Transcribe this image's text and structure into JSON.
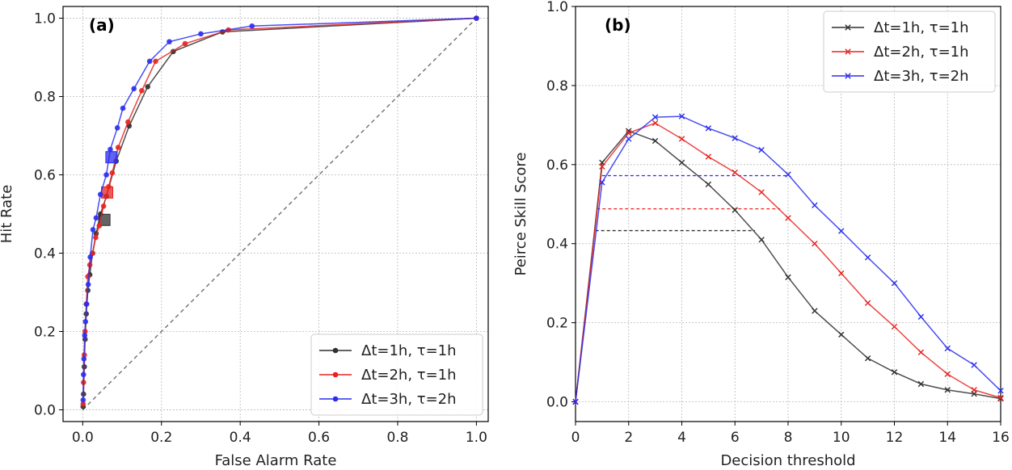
{
  "chart_data": [
    {
      "type": "line",
      "panel_label": "(a)",
      "xlabel": "False Alarm Rate",
      "ylabel": "Hit Rate",
      "xlim": [
        -0.05,
        1.03
      ],
      "ylim": [
        -0.03,
        1.03
      ],
      "xticks": [
        0.0,
        0.2,
        0.4,
        0.6,
        0.8,
        1.0
      ],
      "xtick_labels": [
        "0.0",
        "0.2",
        "0.4",
        "0.6",
        "0.8",
        "1.0"
      ],
      "yticks": [
        0.0,
        0.2,
        0.4,
        0.6,
        0.8,
        1.0
      ],
      "ytick_labels": [
        "0.0",
        "0.2",
        "0.4",
        "0.6",
        "0.8",
        "1.0"
      ],
      "grid": true,
      "legend_position": "bottom-right",
      "diagonal": [
        [
          0.0,
          0.0
        ],
        [
          1.0,
          1.0
        ]
      ],
      "series": [
        {
          "name": "Δt=1h, τ=1h",
          "color": "#303030",
          "marker": "circle",
          "x": [
            0.001,
            0.002,
            0.004,
            0.006,
            0.009,
            0.013,
            0.018,
            0.025,
            0.034,
            0.045,
            0.06,
            0.085,
            0.118,
            0.165,
            0.23,
            0.355,
            1.0
          ],
          "y": [
            0.008,
            0.04,
            0.11,
            0.18,
            0.245,
            0.305,
            0.345,
            0.4,
            0.45,
            0.5,
            0.545,
            0.635,
            0.725,
            0.825,
            0.915,
            0.965,
            1.0
          ],
          "optimum": [
            0.055,
            0.485
          ]
        },
        {
          "name": "Δt=2h, τ=1h",
          "color": "#e8231f",
          "marker": "circle",
          "x": [
            0.001,
            0.002,
            0.004,
            0.006,
            0.009,
            0.013,
            0.018,
            0.025,
            0.033,
            0.042,
            0.053,
            0.066,
            0.075,
            0.09,
            0.115,
            0.15,
            0.185,
            0.26,
            0.37,
            1.0
          ],
          "y": [
            0.015,
            0.07,
            0.14,
            0.2,
            0.27,
            0.34,
            0.37,
            0.4,
            0.44,
            0.47,
            0.52,
            0.57,
            0.605,
            0.67,
            0.735,
            0.815,
            0.89,
            0.935,
            0.97,
            1.0
          ],
          "optimum": [
            0.062,
            0.555
          ]
        },
        {
          "name": "Δt=3h, τ=2h",
          "color": "#2a2ef0",
          "marker": "circle",
          "x": [
            0.001,
            0.002,
            0.003,
            0.005,
            0.007,
            0.01,
            0.014,
            0.019,
            0.026,
            0.034,
            0.045,
            0.06,
            0.07,
            0.088,
            0.102,
            0.13,
            0.17,
            0.22,
            0.3,
            0.43,
            1.0
          ],
          "y": [
            0.025,
            0.09,
            0.13,
            0.19,
            0.225,
            0.27,
            0.32,
            0.39,
            0.46,
            0.49,
            0.55,
            0.6,
            0.665,
            0.72,
            0.77,
            0.82,
            0.89,
            0.94,
            0.96,
            0.98,
            1.0
          ],
          "optimum": [
            0.073,
            0.645
          ]
        }
      ]
    },
    {
      "type": "line",
      "panel_label": "(b)",
      "xlabel": "Decision threshold",
      "ylabel": "Peirce Skill Score",
      "xlim": [
        0,
        16
      ],
      "ylim": [
        -0.05,
        1.0
      ],
      "xticks": [
        0,
        2,
        4,
        6,
        8,
        10,
        12,
        14,
        16
      ],
      "xtick_labels": [
        "0",
        "2",
        "4",
        "6",
        "8",
        "10",
        "12",
        "14",
        "16"
      ],
      "yticks": [
        0.0,
        0.2,
        0.4,
        0.6,
        0.8,
        1.0
      ],
      "ytick_labels": [
        "0.0",
        "0.2",
        "0.4",
        "0.6",
        "0.8",
        "1.0"
      ],
      "grid": true,
      "legend_position": "top-right",
      "series": [
        {
          "name": "Δt=1h, τ=1h",
          "color": "#303030",
          "marker": "x",
          "x": [
            0,
            1,
            2,
            3,
            4,
            5,
            6,
            7,
            8,
            9,
            10,
            11,
            12,
            13,
            14,
            15,
            16
          ],
          "y": [
            0.0,
            0.605,
            0.685,
            0.66,
            0.605,
            0.55,
            0.485,
            0.41,
            0.315,
            0.23,
            0.17,
            0.11,
            0.075,
            0.045,
            0.03,
            0.02,
            0.008
          ],
          "hline": {
            "y": 0.433,
            "x0": 0.75,
            "x1": 6.75
          }
        },
        {
          "name": "Δt=2h, τ=1h",
          "color": "#e8231f",
          "marker": "x",
          "x": [
            0,
            1,
            2,
            3,
            4,
            5,
            6,
            7,
            8,
            9,
            10,
            11,
            12,
            13,
            14,
            15,
            16
          ],
          "y": [
            0.0,
            0.595,
            0.68,
            0.705,
            0.665,
            0.62,
            0.58,
            0.53,
            0.465,
            0.4,
            0.325,
            0.25,
            0.19,
            0.125,
            0.07,
            0.03,
            0.01
          ],
          "hline": {
            "y": 0.488,
            "x0": 0.8,
            "x1": 7.7
          }
        },
        {
          "name": "Δt=3h, τ=2h",
          "color": "#2a2ef0",
          "marker": "x",
          "x": [
            0,
            1,
            2,
            3,
            4,
            5,
            6,
            7,
            8,
            9,
            10,
            11,
            12,
            13,
            14,
            15,
            16
          ],
          "y": [
            0.0,
            0.555,
            0.665,
            0.72,
            0.722,
            0.692,
            0.667,
            0.637,
            0.575,
            0.497,
            0.432,
            0.365,
            0.3,
            0.215,
            0.135,
            0.093,
            0.028
          ],
          "hline": {
            "y": 0.572,
            "x0": 1.0,
            "x1": 8.0
          }
        }
      ]
    }
  ]
}
